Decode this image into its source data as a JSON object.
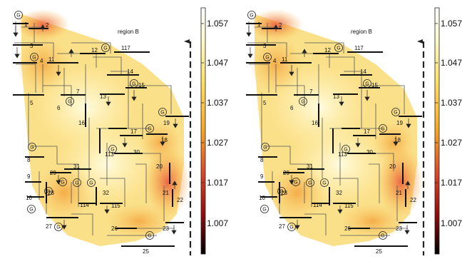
{
  "panels": [
    {
      "id": "left",
      "region_label": "region B"
    },
    {
      "id": "right",
      "region_label": "region B"
    }
  ],
  "colorbar": {
    "tick_labels": [
      "1.057",
      "1.047",
      "1.037",
      "1.027",
      "1.017",
      "1.007"
    ],
    "colormap": [
      "#ffffff",
      "#fff8b0",
      "#ffe066",
      "#f5a623",
      "#d9442a",
      "#8b0a0a",
      "#000000"
    ]
  },
  "bus_labels": {
    "b1": "1",
    "b2": "2",
    "b3": "3",
    "b4": "4",
    "b5": "5",
    "b6": "6",
    "b7": "7",
    "b11": "11",
    "b12": "12",
    "b13": "13",
    "b14": "14",
    "b15": "15",
    "b16": "16",
    "b17": "17",
    "b18": "18",
    "b19": "19",
    "b20": "20",
    "b21": "21",
    "b22": "22",
    "b23": "23",
    "b25": "25",
    "b26": "26",
    "b27": "27",
    "b28": "28",
    "b29": "29",
    "b30": "30",
    "b31": "31",
    "b32": "32",
    "b8": "8",
    "b9": "9",
    "b10": "10",
    "b113": "113",
    "b114": "114",
    "b115": "115",
    "b117": "117"
  },
  "generator_symbol": "G"
}
